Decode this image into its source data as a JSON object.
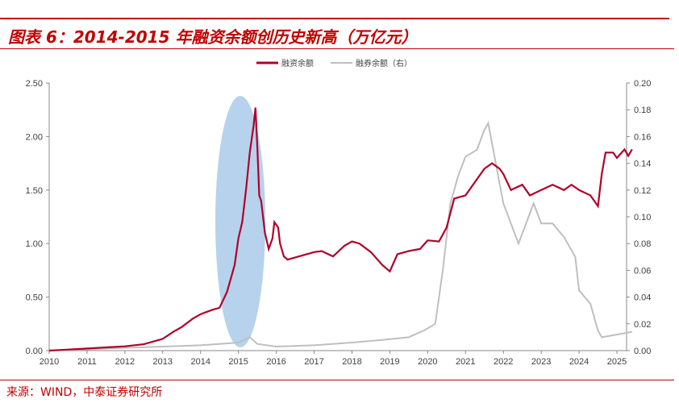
{
  "title": "图表 6：2014-2015 年融资余额创历史新高（万亿元）",
  "source": "来源：WIND，中泰证券研究所",
  "colors": {
    "financing": "#b0002a",
    "lending": "#bfbfbf",
    "highlight": "#9dc3e6",
    "accent": "#c00000"
  },
  "chart_data": {
    "type": "line",
    "title": "",
    "xlabel": "",
    "ylabel": "",
    "x_ticks": [
      "2010",
      "2011",
      "2012",
      "2013",
      "2014",
      "2015",
      "2016",
      "2017",
      "2018",
      "2019",
      "2020",
      "2021",
      "2022",
      "2023",
      "2024",
      "2025"
    ],
    "y_left_ticks": [
      "0.00",
      "0.50",
      "1.00",
      "1.50",
      "2.00",
      "2.50"
    ],
    "y_right_ticks": [
      "0.00",
      "0.02",
      "0.04",
      "0.06",
      "0.08",
      "0.10",
      "0.12",
      "0.14",
      "0.16",
      "0.18",
      "0.20"
    ],
    "ylim_left": [
      0,
      2.5
    ],
    "ylim_right": [
      0,
      0.2
    ],
    "xlim": [
      2010,
      2025.4
    ],
    "legend_position": "top-right",
    "annotation": "ellipse highlighting 2014-2015 peak",
    "series": [
      {
        "name": "融资余额",
        "axis": "left",
        "x": [
          2010.0,
          2010.5,
          2011.0,
          2011.5,
          2012.0,
          2012.5,
          2013.0,
          2013.3,
          2013.5,
          2013.8,
          2014.0,
          2014.3,
          2014.5,
          2014.7,
          2014.9,
          2015.0,
          2015.1,
          2015.2,
          2015.3,
          2015.4,
          2015.45,
          2015.5,
          2015.55,
          2015.6,
          2015.7,
          2015.8,
          2015.9,
          2015.95,
          2016.05,
          2016.1,
          2016.2,
          2016.3,
          2016.5,
          2016.8,
          2017.0,
          2017.2,
          2017.5,
          2017.8,
          2018.0,
          2018.2,
          2018.5,
          2018.8,
          2019.0,
          2019.2,
          2019.5,
          2019.8,
          2020.0,
          2020.3,
          2020.5,
          2020.7,
          2021.0,
          2021.3,
          2021.5,
          2021.7,
          2021.9,
          2022.0,
          2022.2,
          2022.5,
          2022.7,
          2023.0,
          2023.3,
          2023.6,
          2023.8,
          2024.0,
          2024.3,
          2024.5,
          2024.6,
          2024.7,
          2024.9,
          2025.0,
          2025.2,
          2025.3,
          2025.4
        ],
        "values": [
          0,
          0.01,
          0.02,
          0.03,
          0.04,
          0.06,
          0.11,
          0.18,
          0.22,
          0.3,
          0.34,
          0.38,
          0.4,
          0.55,
          0.8,
          1.05,
          1.2,
          1.5,
          1.85,
          2.1,
          2.27,
          1.9,
          1.45,
          1.4,
          1.1,
          0.95,
          1.05,
          1.2,
          1.15,
          1.0,
          0.88,
          0.85,
          0.87,
          0.9,
          0.92,
          0.93,
          0.88,
          0.98,
          1.02,
          1.0,
          0.92,
          0.8,
          0.74,
          0.9,
          0.93,
          0.95,
          1.03,
          1.02,
          1.15,
          1.42,
          1.45,
          1.6,
          1.7,
          1.75,
          1.7,
          1.65,
          1.5,
          1.55,
          1.45,
          1.5,
          1.55,
          1.5,
          1.55,
          1.5,
          1.45,
          1.35,
          1.65,
          1.85,
          1.85,
          1.8,
          1.88,
          1.82,
          1.88
        ]
      },
      {
        "name": "融券余额（右）",
        "axis": "right",
        "x": [
          2010.0,
          2011.0,
          2012.0,
          2013.0,
          2014.0,
          2014.5,
          2015.0,
          2015.3,
          2015.5,
          2016.0,
          2017.0,
          2018.0,
          2018.8,
          2019.5,
          2019.9,
          2020.2,
          2020.4,
          2020.6,
          2020.8,
          2021.0,
          2021.3,
          2021.5,
          2021.6,
          2021.8,
          2022.0,
          2022.2,
          2022.4,
          2022.6,
          2022.8,
          2023.0,
          2023.3,
          2023.6,
          2023.9,
          2024.0,
          2024.3,
          2024.5,
          2024.6,
          2025.0,
          2025.4
        ],
        "values": [
          0,
          0.001,
          0.002,
          0.003,
          0.004,
          0.005,
          0.006,
          0.01,
          0.005,
          0.003,
          0.004,
          0.006,
          0.008,
          0.01,
          0.015,
          0.02,
          0.06,
          0.11,
          0.13,
          0.145,
          0.15,
          0.165,
          0.17,
          0.14,
          0.11,
          0.095,
          0.08,
          0.095,
          0.11,
          0.095,
          0.095,
          0.085,
          0.07,
          0.045,
          0.035,
          0.015,
          0.01,
          0.012,
          0.014
        ]
      }
    ]
  }
}
